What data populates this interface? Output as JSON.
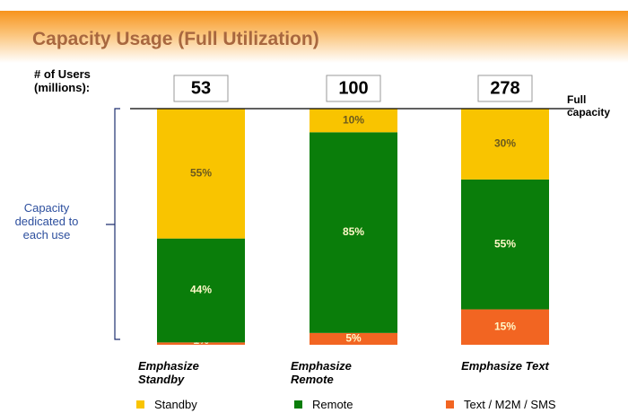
{
  "chart_data": {
    "type": "stacked_bar",
    "title": "Capacity Usage (Full Utilization)",
    "users": {
      "label": "# of Users (millions):",
      "values": [
        53,
        100,
        278
      ]
    },
    "annotation": "Full capacity",
    "y_label": "Capacity dedicated to each use",
    "categories": [
      "Emphasize Standby",
      "Emphasize Remote",
      "Emphasize Text"
    ],
    "series": [
      {
        "name": "Standby",
        "color": "#f9c400",
        "values": [
          55,
          10,
          30
        ],
        "value_labels": [
          "55%",
          "10%",
          "30%"
        ]
      },
      {
        "name": "Remote",
        "color": "#0a7d0a",
        "values": [
          44,
          85,
          55
        ],
        "value_labels": [
          "44%",
          "85%",
          "55%"
        ]
      },
      {
        "name": "Text / M2M / SMS",
        "color": "#f26522",
        "values": [
          1,
          5,
          15
        ],
        "value_labels": [
          "1%",
          "5%",
          "15%"
        ]
      }
    ],
    "ylim": [
      0,
      100
    ]
  }
}
